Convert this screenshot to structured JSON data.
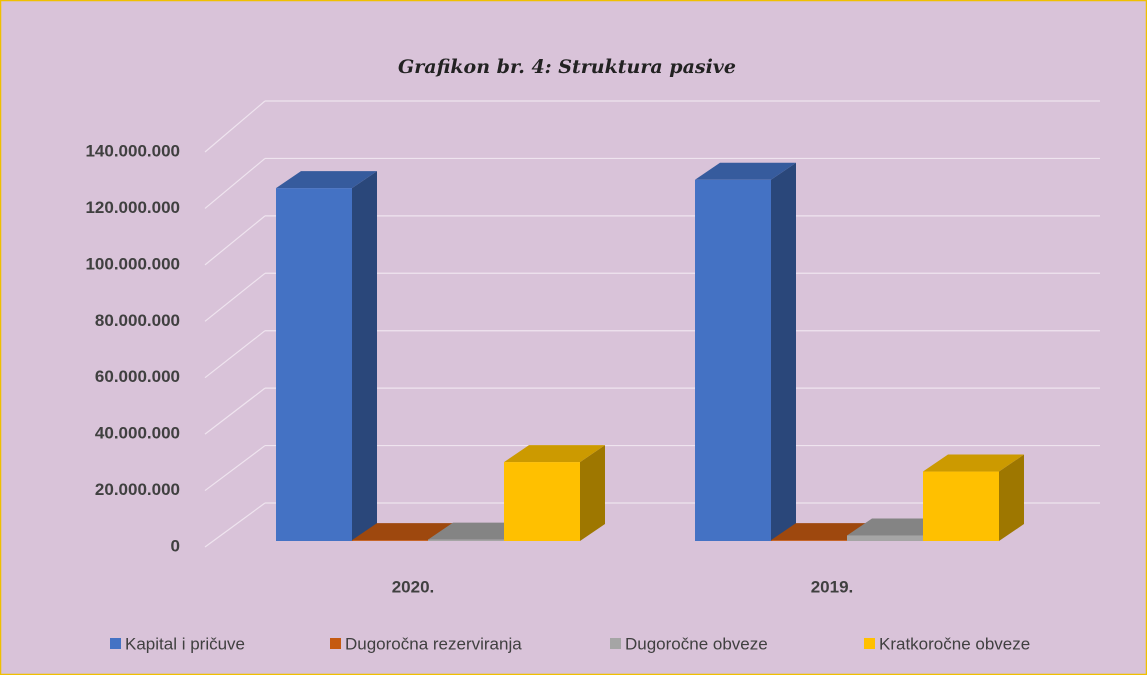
{
  "chart_data": {
    "type": "bar3d",
    "title": "Grafikon br. 4: Struktura pasive",
    "categories": [
      "2020.",
      "2019."
    ],
    "series": [
      {
        "name": "Kapital i pričuve",
        "color": "#4472c4",
        "values": [
          127000000,
          130000000
        ]
      },
      {
        "name": "Dugoročna rezerviranja",
        "color": "#c55a11",
        "values": [
          300000,
          300000
        ]
      },
      {
        "name": "Dugoročne obveze",
        "color": "#a5a5a5",
        "values": [
          500000,
          2000000
        ]
      },
      {
        "name": "Kratkoročne obveze",
        "color": "#ffc000",
        "values": [
          28400000,
          25000000
        ]
      }
    ],
    "ylim": [
      0,
      140000000
    ],
    "yticks": [
      0,
      {
        "value": 20000000,
        "label": "20.000.000"
      },
      {
        "value": 40000000,
        "label": "40.000.000"
      },
      {
        "value": 60000000,
        "label": "60.000.000"
      },
      {
        "value": 80000000,
        "label": "80.000.000"
      },
      {
        "value": 100000000,
        "label": "100.000.000"
      },
      {
        "value": 120000000,
        "label": "120.000.000"
      },
      {
        "value": 140000000,
        "label": "140.000.000"
      }
    ],
    "grid": true,
    "legend": "bottom"
  }
}
